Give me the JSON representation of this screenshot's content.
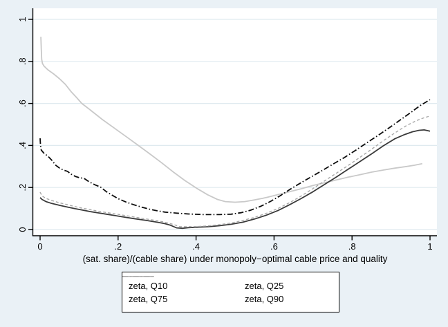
{
  "chart_data": {
    "type": "line",
    "title": "",
    "xlabel": "(sat. share)/(cable share) under monopoly−optimal cable price and quality",
    "ylabel": "",
    "xlim": [
      0,
      1
    ],
    "ylim": [
      0,
      1
    ],
    "xticks": {
      "labels": [
        "0",
        ".2",
        ".4",
        ".6",
        ".8",
        "1"
      ],
      "values": [
        0,
        0.2,
        0.4,
        0.6,
        0.8,
        1
      ]
    },
    "yticks": {
      "labels": [
        "0",
        ".2",
        ".4",
        ".6",
        ".8",
        "1"
      ],
      "values": [
        0,
        0.2,
        0.4,
        0.6,
        0.8,
        1
      ]
    },
    "grid": "horizontal",
    "legend": {
      "position": "bottom",
      "columns": 2,
      "row1": [
        "zeta, Q10",
        "zeta, Q25"
      ],
      "row2": [
        "zeta, Q75",
        "zeta, Q90"
      ]
    },
    "colors": {
      "background": "#eaf1f6",
      "plot_background": "#ffffff",
      "gridline": "#dfeaef",
      "axis": "#000000",
      "q10": "#3a3a3a",
      "q25": "#a8a8a8",
      "q75": "#0d0d0d",
      "q90": "#c9c9c9"
    },
    "series": [
      {
        "name": "zeta, Q10",
        "style": "solid",
        "color": "#3a3a3a",
        "width": 1.8,
        "z": 2,
        "points": [
          [
            0,
            0.152
          ],
          [
            0.005,
            0.143
          ],
          [
            0.015,
            0.133
          ],
          [
            0.03,
            0.124
          ],
          [
            0.05,
            0.115
          ],
          [
            0.07,
            0.107
          ],
          [
            0.09,
            0.099
          ],
          [
            0.11,
            0.092
          ],
          [
            0.13,
            0.085
          ],
          [
            0.15,
            0.079
          ],
          [
            0.17,
            0.073
          ],
          [
            0.19,
            0.067
          ],
          [
            0.21,
            0.061
          ],
          [
            0.24,
            0.052
          ],
          [
            0.27,
            0.044
          ],
          [
            0.3,
            0.035
          ],
          [
            0.32,
            0.028
          ],
          [
            0.335,
            0.02
          ],
          [
            0.35,
            0.008
          ],
          [
            0.365,
            0.006
          ],
          [
            0.38,
            0.009
          ],
          [
            0.4,
            0.011
          ],
          [
            0.43,
            0.013
          ],
          [
            0.46,
            0.018
          ],
          [
            0.49,
            0.025
          ],
          [
            0.52,
            0.035
          ],
          [
            0.55,
            0.05
          ],
          [
            0.58,
            0.068
          ],
          [
            0.61,
            0.09
          ],
          [
            0.64,
            0.118
          ],
          [
            0.67,
            0.148
          ],
          [
            0.7,
            0.18
          ],
          [
            0.73,
            0.215
          ],
          [
            0.76,
            0.25
          ],
          [
            0.79,
            0.287
          ],
          [
            0.82,
            0.323
          ],
          [
            0.85,
            0.36
          ],
          [
            0.88,
            0.398
          ],
          [
            0.91,
            0.432
          ],
          [
            0.935,
            0.452
          ],
          [
            0.955,
            0.465
          ],
          [
            0.972,
            0.472
          ],
          [
            0.985,
            0.474
          ],
          [
            1.0,
            0.468
          ]
        ]
      },
      {
        "name": "zeta, Q25",
        "style": "dashed",
        "color": "#a8a8a8",
        "width": 1.4,
        "z": 3,
        "points": [
          [
            0,
            0.178
          ],
          [
            0.005,
            0.16
          ],
          [
            0.015,
            0.148
          ],
          [
            0.03,
            0.138
          ],
          [
            0.05,
            0.127
          ],
          [
            0.07,
            0.118
          ],
          [
            0.09,
            0.109
          ],
          [
            0.11,
            0.101
          ],
          [
            0.13,
            0.094
          ],
          [
            0.15,
            0.087
          ],
          [
            0.17,
            0.081
          ],
          [
            0.19,
            0.075
          ],
          [
            0.21,
            0.069
          ],
          [
            0.24,
            0.06
          ],
          [
            0.27,
            0.051
          ],
          [
            0.3,
            0.042
          ],
          [
            0.32,
            0.035
          ],
          [
            0.34,
            0.025
          ],
          [
            0.36,
            0.013
          ],
          [
            0.38,
            0.013
          ],
          [
            0.4,
            0.014
          ],
          [
            0.43,
            0.017
          ],
          [
            0.46,
            0.023
          ],
          [
            0.49,
            0.031
          ],
          [
            0.52,
            0.043
          ],
          [
            0.55,
            0.058
          ],
          [
            0.58,
            0.077
          ],
          [
            0.61,
            0.1
          ],
          [
            0.64,
            0.128
          ],
          [
            0.67,
            0.16
          ],
          [
            0.7,
            0.195
          ],
          [
            0.73,
            0.232
          ],
          [
            0.76,
            0.268
          ],
          [
            0.79,
            0.305
          ],
          [
            0.82,
            0.343
          ],
          [
            0.85,
            0.382
          ],
          [
            0.88,
            0.422
          ],
          [
            0.91,
            0.46
          ],
          [
            0.94,
            0.495
          ],
          [
            0.965,
            0.518
          ],
          [
            0.985,
            0.532
          ],
          [
            1.0,
            0.54
          ]
        ]
      },
      {
        "name": "zeta, Q75",
        "style": "dash-dot",
        "color": "#0d0d0d",
        "width": 1.8,
        "z": 4,
        "points": [
          [
            0,
            0.434
          ],
          [
            0.001,
            0.4
          ],
          [
            0.003,
            0.378
          ],
          [
            0.01,
            0.363
          ],
          [
            0.02,
            0.349
          ],
          [
            0.03,
            0.33
          ],
          [
            0.04,
            0.306
          ],
          [
            0.05,
            0.292
          ],
          [
            0.06,
            0.283
          ],
          [
            0.07,
            0.277
          ],
          [
            0.08,
            0.263
          ],
          [
            0.09,
            0.253
          ],
          [
            0.1,
            0.247
          ],
          [
            0.113,
            0.243
          ],
          [
            0.125,
            0.228
          ],
          [
            0.14,
            0.213
          ],
          [
            0.155,
            0.202
          ],
          [
            0.17,
            0.18
          ],
          [
            0.185,
            0.163
          ],
          [
            0.2,
            0.147
          ],
          [
            0.22,
            0.131
          ],
          [
            0.24,
            0.118
          ],
          [
            0.26,
            0.107
          ],
          [
            0.28,
            0.097
          ],
          [
            0.3,
            0.089
          ],
          [
            0.32,
            0.083
          ],
          [
            0.35,
            0.078
          ],
          [
            0.38,
            0.074
          ],
          [
            0.42,
            0.071
          ],
          [
            0.46,
            0.071
          ],
          [
            0.49,
            0.073
          ],
          [
            0.515,
            0.08
          ],
          [
            0.54,
            0.092
          ],
          [
            0.565,
            0.11
          ],
          [
            0.59,
            0.133
          ],
          [
            0.615,
            0.16
          ],
          [
            0.64,
            0.19
          ],
          [
            0.665,
            0.218
          ],
          [
            0.69,
            0.245
          ],
          [
            0.72,
            0.277
          ],
          [
            0.75,
            0.31
          ],
          [
            0.78,
            0.342
          ],
          [
            0.81,
            0.378
          ],
          [
            0.84,
            0.415
          ],
          [
            0.87,
            0.452
          ],
          [
            0.9,
            0.49
          ],
          [
            0.925,
            0.523
          ],
          [
            0.95,
            0.556
          ],
          [
            0.975,
            0.59
          ],
          [
            1.0,
            0.618
          ]
        ]
      },
      {
        "name": "zeta, Q90",
        "style": "solid",
        "color": "#c9c9c9",
        "width": 1.8,
        "z": 1,
        "points": [
          [
            0.002,
            0.917
          ],
          [
            0.003,
            0.86
          ],
          [
            0.004,
            0.81
          ],
          [
            0.006,
            0.79
          ],
          [
            0.01,
            0.778
          ],
          [
            0.02,
            0.76
          ],
          [
            0.035,
            0.74
          ],
          [
            0.05,
            0.717
          ],
          [
            0.065,
            0.69
          ],
          [
            0.08,
            0.655
          ],
          [
            0.095,
            0.625
          ],
          [
            0.107,
            0.6
          ],
          [
            0.13,
            0.567
          ],
          [
            0.16,
            0.523
          ],
          [
            0.19,
            0.483
          ],
          [
            0.22,
            0.443
          ],
          [
            0.252,
            0.4
          ],
          [
            0.28,
            0.362
          ],
          [
            0.31,
            0.32
          ],
          [
            0.34,
            0.276
          ],
          [
            0.37,
            0.235
          ],
          [
            0.4,
            0.198
          ],
          [
            0.43,
            0.165
          ],
          [
            0.455,
            0.143
          ],
          [
            0.475,
            0.133
          ],
          [
            0.5,
            0.13
          ],
          [
            0.525,
            0.133
          ],
          [
            0.55,
            0.141
          ],
          [
            0.58,
            0.152
          ],
          [
            0.61,
            0.166
          ],
          [
            0.64,
            0.18
          ],
          [
            0.67,
            0.194
          ],
          [
            0.7,
            0.21
          ],
          [
            0.73,
            0.223
          ],
          [
            0.76,
            0.236
          ],
          [
            0.79,
            0.249
          ],
          [
            0.82,
            0.261
          ],
          [
            0.85,
            0.273
          ],
          [
            0.88,
            0.283
          ],
          [
            0.91,
            0.292
          ],
          [
            0.94,
            0.3
          ],
          [
            0.96,
            0.306
          ],
          [
            0.98,
            0.313
          ]
        ]
      }
    ]
  }
}
